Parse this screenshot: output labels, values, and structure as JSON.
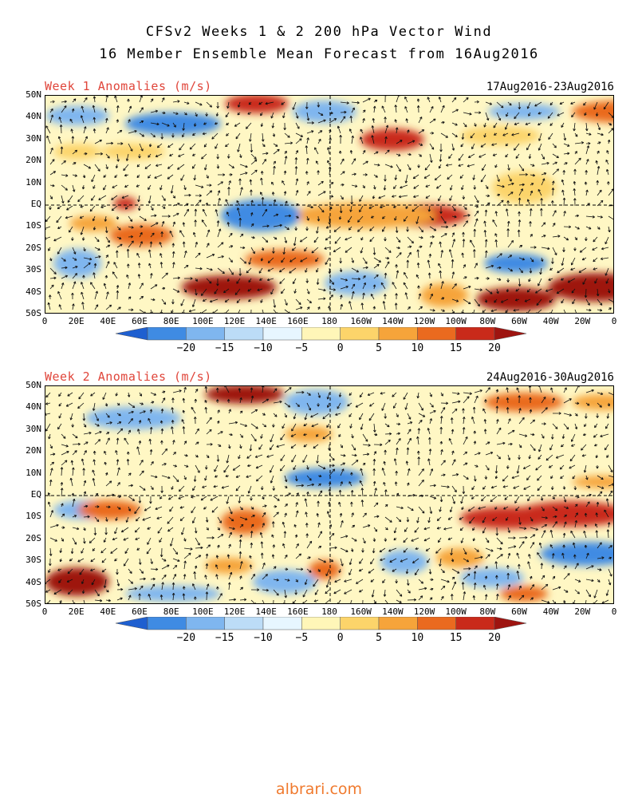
{
  "title": {
    "line1": "CFSv2 Weeks 1 & 2 200 hPa Vector Wind",
    "line2": "16 Member Ensemble Mean Forecast from 16Aug2016"
  },
  "panels": [
    {
      "label": "Week 1 Anomalies (m/s)",
      "date_range": "17Aug2016-23Aug2016"
    },
    {
      "label": "Week 2 Anomalies (m/s)",
      "date_range": "24Aug2016-30Aug2016"
    }
  ],
  "lat_labels": [
    "50N",
    "40N",
    "30N",
    "20N",
    "10N",
    "EQ",
    "10S",
    "20S",
    "30S",
    "40S",
    "50S"
  ],
  "lon_labels": [
    "0",
    "20E",
    "40E",
    "60E",
    "80E",
    "100E",
    "120E",
    "140E",
    "160E",
    "180",
    "160W",
    "140W",
    "120W",
    "100W",
    "80W",
    "60W",
    "40W",
    "20W",
    "0"
  ],
  "colorbar": {
    "ticks": [
      "−20",
      "−15",
      "−10",
      "−5",
      "0",
      "5",
      "10",
      "15",
      "20"
    ],
    "colors": [
      "#1e5fd0",
      "#3f8be3",
      "#7fb6ef",
      "#bcdcf7",
      "#e7f6ff",
      "#fff6b8",
      "#fcd46a",
      "#f6a43a",
      "#ea6a1f",
      "#c92a1a",
      "#9e1410"
    ]
  },
  "watermark": "albrari.com"
}
